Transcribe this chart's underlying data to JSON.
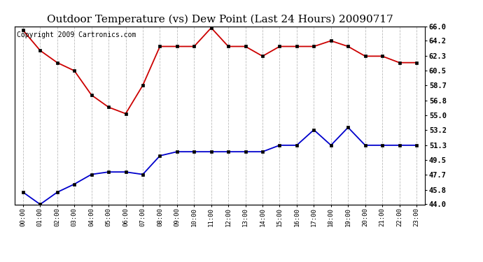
{
  "title": "Outdoor Temperature (vs) Dew Point (Last 24 Hours) 20090717",
  "copyright": "Copyright 2009 Cartronics.com",
  "hours": [
    "00:00",
    "01:00",
    "02:00",
    "03:00",
    "04:00",
    "05:00",
    "06:00",
    "07:00",
    "08:00",
    "09:00",
    "10:00",
    "11:00",
    "12:00",
    "13:00",
    "14:00",
    "15:00",
    "16:00",
    "17:00",
    "18:00",
    "19:00",
    "20:00",
    "21:00",
    "22:00",
    "23:00"
  ],
  "temp": [
    65.5,
    63.0,
    61.5,
    60.5,
    57.5,
    56.0,
    55.2,
    58.7,
    63.5,
    63.5,
    63.5,
    65.8,
    63.5,
    63.5,
    62.3,
    63.5,
    63.5,
    63.5,
    64.2,
    63.5,
    62.3,
    62.3,
    61.5,
    61.5
  ],
  "dew": [
    45.5,
    44.0,
    45.5,
    46.5,
    47.7,
    48.0,
    48.0,
    47.7,
    50.0,
    50.5,
    50.5,
    50.5,
    50.5,
    50.5,
    50.5,
    51.3,
    51.3,
    53.2,
    51.3,
    53.5,
    51.3,
    51.3,
    51.3,
    51.3
  ],
  "temp_color": "#cc0000",
  "dew_color": "#0000cc",
  "ymin": 44.0,
  "ymax": 66.0,
  "yticks_right": [
    66.0,
    64.2,
    62.3,
    60.5,
    58.7,
    56.8,
    55.0,
    53.2,
    51.3,
    49.5,
    47.7,
    45.8,
    44.0
  ],
  "background_color": "#ffffff",
  "grid_color": "#bbbbbb",
  "title_fontsize": 11,
  "copyright_fontsize": 7
}
